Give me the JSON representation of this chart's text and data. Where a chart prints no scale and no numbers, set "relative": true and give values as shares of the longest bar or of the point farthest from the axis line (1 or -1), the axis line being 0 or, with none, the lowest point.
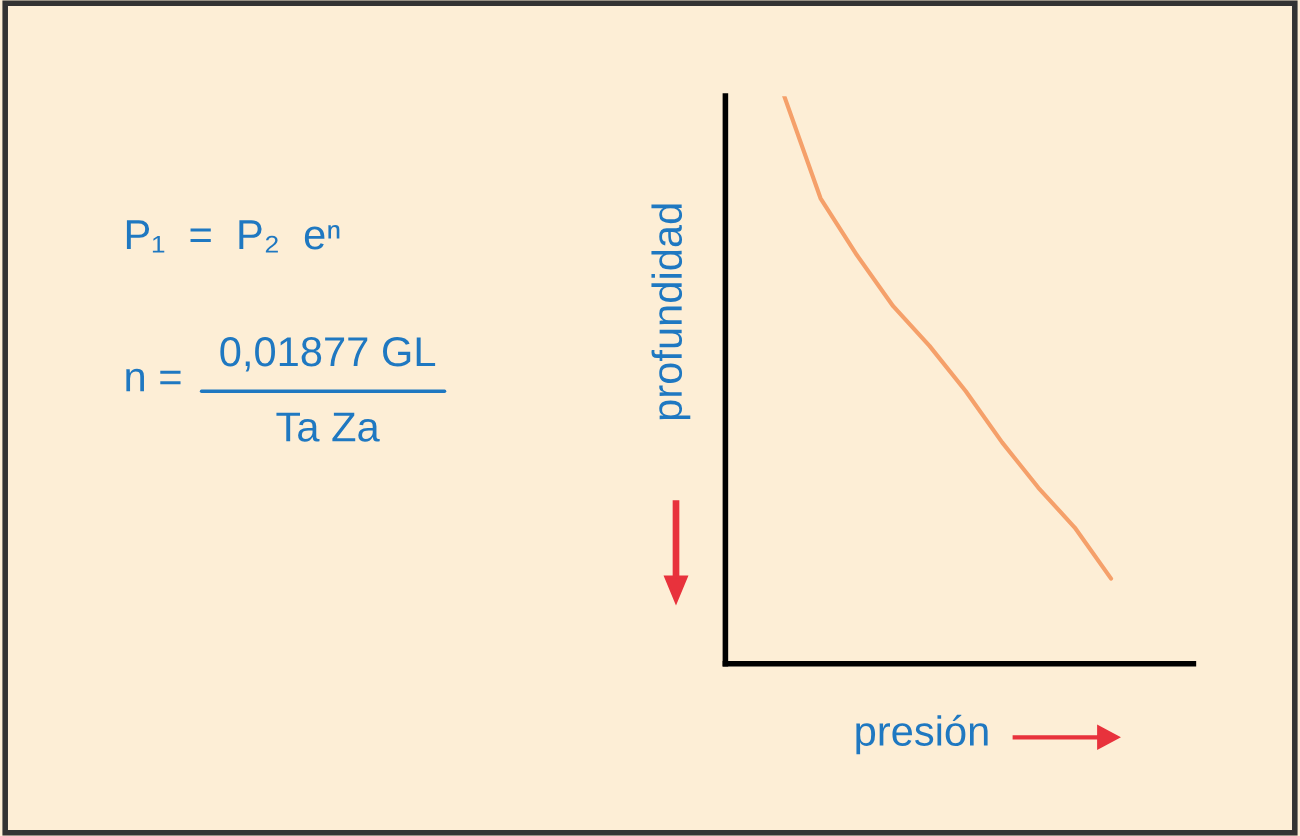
{
  "chart_data": {
    "type": "line",
    "relative": true,
    "xlabel": "presión",
    "ylabel": "profundidad",
    "categories": [
      null,
      null,
      null,
      null,
      null,
      null,
      null,
      null,
      null,
      null
    ],
    "series": [
      {
        "color": "#f5a06a",
        "values": [
          1.0,
          0.82,
          0.72,
          0.63,
          0.56,
          0.48,
          0.39,
          0.31,
          0.24,
          0.15
        ]
      }
    ],
    "annotations": [
      "P₁  =  P₂  eⁿ",
      "n =",
      "0,01877 GL",
      "Ta Za"
    ]
  }
}
